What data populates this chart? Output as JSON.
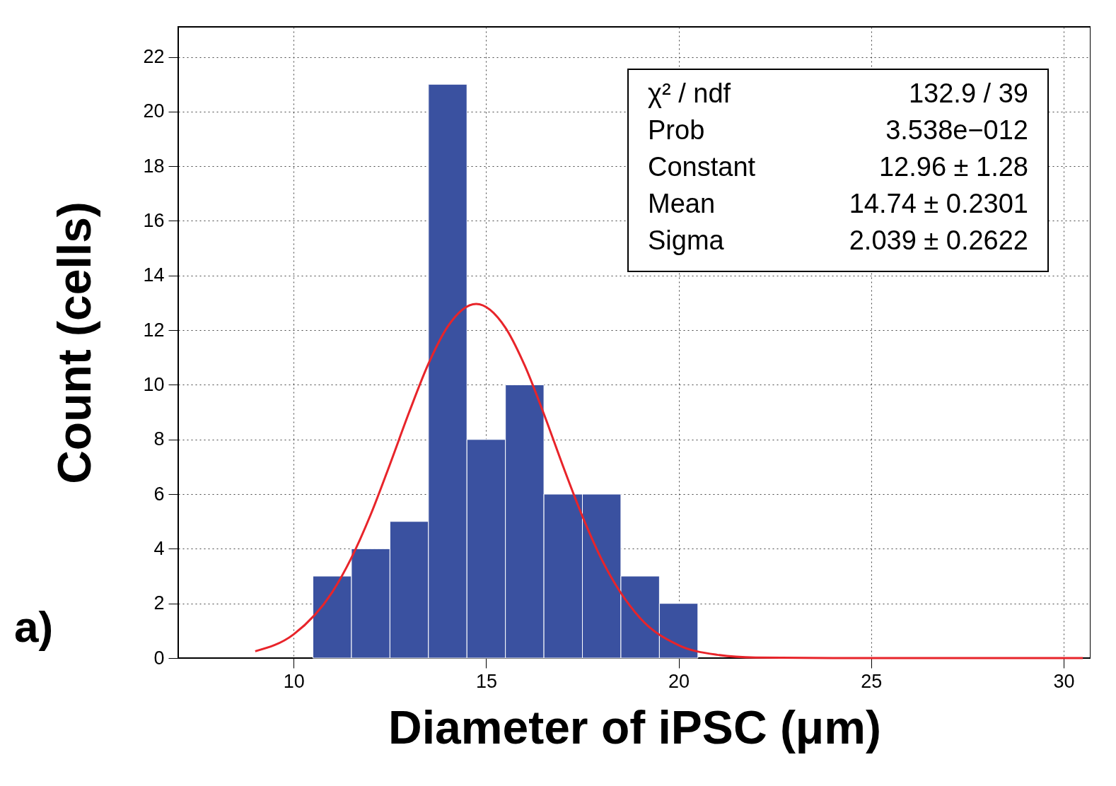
{
  "chart_data": {
    "type": "histogram",
    "xlabel": "Diameter of iPSC (μm)",
    "ylabel": "Count (cells)",
    "bins": [
      10.5,
      11.5,
      12.5,
      13.5,
      14.5,
      15.5,
      16.5,
      17.5,
      18.5,
      19.5,
      20.5
    ],
    "values": [
      3,
      4,
      5,
      21,
      8,
      10,
      6,
      6,
      3,
      2
    ],
    "color": "#3a51a0",
    "series": [
      {
        "type": "line",
        "color": "#e8242a",
        "x": [
          9,
          10,
          11,
          11.5,
          12,
          12.5,
          13,
          13.5,
          14,
          14.74,
          15.5,
          16,
          16.5,
          17,
          17.5,
          18,
          19,
          20,
          21,
          22,
          24,
          30.5
        ],
        "values": [
          0.25,
          0.87,
          2.41,
          3.67,
          5.25,
          7.09,
          9.0,
          10.77,
          12.13,
          12.96,
          12.09,
          10.71,
          8.93,
          7.01,
          5.19,
          3.61,
          1.46,
          0.47,
          0.12,
          0.02,
          0,
          0
        ]
      }
    ],
    "xlim": [
      7,
      30.7
    ],
    "xticks": [
      10,
      15,
      20,
      25,
      30
    ],
    "ylim": [
      0,
      23.1
    ],
    "yticks": [
      0,
      2,
      4,
      6,
      8,
      10,
      12,
      14,
      16,
      18,
      20,
      22
    ],
    "grid": true,
    "annotations": [
      "a)",
      "χ² / ndf",
      "132.9 / 39",
      "Prob",
      "3.538e−012",
      "Constant",
      "12.96 ±  1.28",
      "Mean",
      "14.74 ± 0.2301",
      "Sigma",
      "2.039 ± 0.2622"
    ]
  }
}
